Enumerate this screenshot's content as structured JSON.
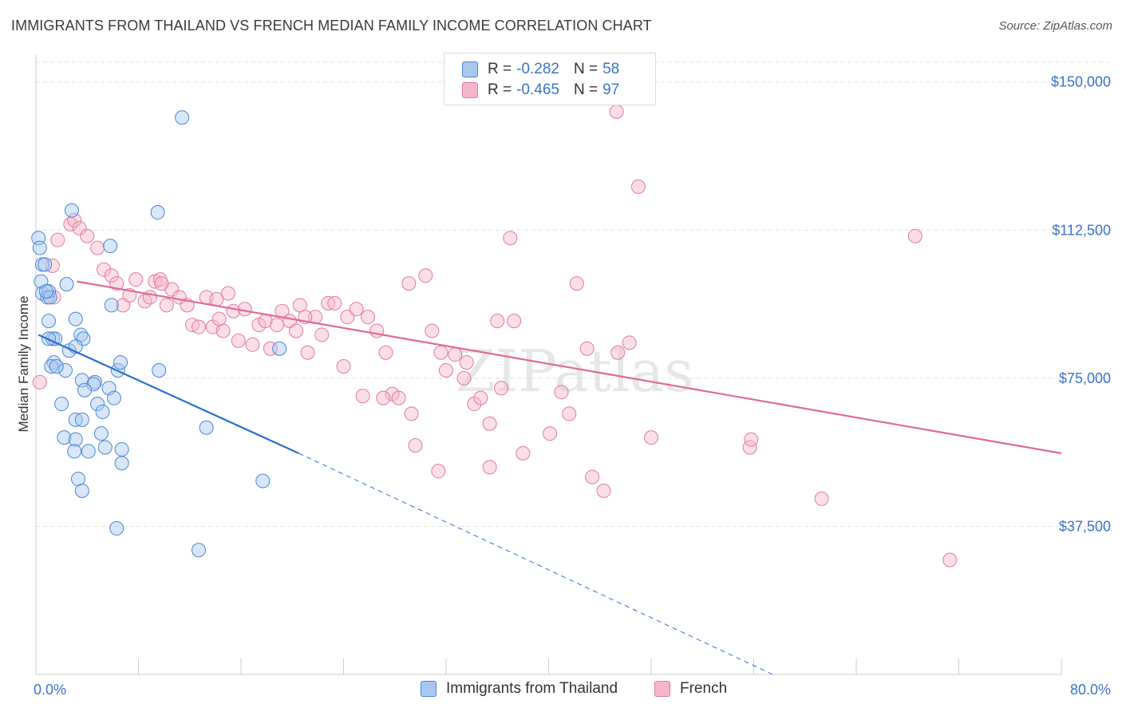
{
  "title": "IMMIGRANTS FROM THAILAND VS FRENCH MEDIAN FAMILY INCOME CORRELATION CHART",
  "source": "Source: ZipAtlas.com",
  "legend_top": [
    {
      "r_label": "R =",
      "r_value": "-0.282",
      "n_label": "N =",
      "n_value": "58"
    },
    {
      "r_label": "R =",
      "r_value": "-0.465",
      "n_label": "N =",
      "n_value": "97"
    }
  ],
  "chart_data": {
    "type": "scatter",
    "title": "IMMIGRANTS FROM THAILAND VS FRENCH MEDIAN FAMILY INCOME CORRELATION CHART",
    "xlabel": "",
    "ylabel": "Median Family Income",
    "x_tick_labels": [
      "0.0%",
      "80.0%"
    ],
    "y_tick_labels": [
      "$150,000",
      "$112,500",
      "$75,000",
      "$37,500"
    ],
    "y_ticks": [
      150000,
      112500,
      75000,
      37500
    ],
    "xlim": [
      0,
      80
    ],
    "ylim": [
      0,
      155000
    ],
    "grid": true,
    "legend_placement": "bottom",
    "watermark": "ZIPatlas",
    "colors": {
      "thailand_fill": "#a9c8ef",
      "thailand_stroke": "#4a86d4",
      "thailand_line": "#2a6fd1",
      "french_fill": "#f6b5c9",
      "french_stroke": "#e27ba0",
      "french_line": "#e0699a",
      "tick_text": "#3a74c9"
    },
    "series": [
      {
        "name": "Immigrants from Thailand",
        "trend": {
          "x0": 0.2,
          "y0": 86000,
          "x1": 20.5,
          "y1": 56000,
          "dash_x1": 57.5,
          "dash_y1": 0
        },
        "points": [
          [
            0.2,
            110500
          ],
          [
            0.3,
            108000
          ],
          [
            0.5,
            103800
          ],
          [
            0.7,
            103800
          ],
          [
            0.4,
            99500
          ],
          [
            0.5,
            96500
          ],
          [
            0.9,
            95500
          ],
          [
            1.0,
            97000
          ],
          [
            1.1,
            95500
          ],
          [
            2.4,
            98800
          ],
          [
            2.8,
            117500
          ],
          [
            11.4,
            141000
          ],
          [
            9.5,
            117000
          ],
          [
            5.8,
            108500
          ],
          [
            5.9,
            93500
          ],
          [
            3.1,
            90000
          ],
          [
            1.0,
            89500
          ],
          [
            3.5,
            86000
          ],
          [
            3.7,
            85000
          ],
          [
            1.3,
            85000
          ],
          [
            2.6,
            82000
          ],
          [
            3.1,
            83000
          ],
          [
            1.4,
            79000
          ],
          [
            1.2,
            78000
          ],
          [
            2.3,
            77000
          ],
          [
            1.6,
            78000
          ],
          [
            6.4,
            77000
          ],
          [
            6.6,
            79000
          ],
          [
            9.6,
            77000
          ],
          [
            3.6,
            74500
          ],
          [
            4.6,
            74000
          ],
          [
            4.5,
            73500
          ],
          [
            5.7,
            72500
          ],
          [
            3.8,
            72000
          ],
          [
            6.1,
            70000
          ],
          [
            2.0,
            68500
          ],
          [
            4.8,
            68500
          ],
          [
            5.2,
            66500
          ],
          [
            3.1,
            64500
          ],
          [
            3.6,
            64500
          ],
          [
            5.1,
            61000
          ],
          [
            2.2,
            60000
          ],
          [
            3.1,
            59500
          ],
          [
            5.4,
            57500
          ],
          [
            6.7,
            57000
          ],
          [
            3.0,
            56500
          ],
          [
            4.1,
            56500
          ],
          [
            6.7,
            53500
          ],
          [
            3.3,
            49500
          ],
          [
            3.6,
            46500
          ],
          [
            13.3,
            62500
          ],
          [
            17.7,
            49000
          ],
          [
            19.0,
            82500
          ],
          [
            6.3,
            37000
          ],
          [
            12.7,
            31500
          ],
          [
            1.5,
            85000
          ],
          [
            1.0,
            85000
          ],
          [
            0.8,
            97000
          ]
        ]
      },
      {
        "name": "French",
        "trend": {
          "x0": 3.2,
          "y0": 99500,
          "x1": 80.0,
          "y1": 56000
        },
        "points": [
          [
            0.3,
            74000
          ],
          [
            1.3,
            103500
          ],
          [
            1.7,
            110000
          ],
          [
            1.4,
            95500
          ],
          [
            2.7,
            114000
          ],
          [
            3.0,
            115000
          ],
          [
            3.4,
            113000
          ],
          [
            4.0,
            111000
          ],
          [
            4.8,
            108000
          ],
          [
            5.3,
            102500
          ],
          [
            5.9,
            101000
          ],
          [
            6.3,
            99000
          ],
          [
            6.8,
            93500
          ],
          [
            7.3,
            96000
          ],
          [
            7.8,
            100000
          ],
          [
            8.5,
            94500
          ],
          [
            8.9,
            95500
          ],
          [
            9.3,
            99500
          ],
          [
            9.7,
            100000
          ],
          [
            10.2,
            93500
          ],
          [
            10.6,
            97500
          ],
          [
            11.2,
            95500
          ],
          [
            11.8,
            93500
          ],
          [
            12.2,
            88500
          ],
          [
            12.7,
            88000
          ],
          [
            13.3,
            95500
          ],
          [
            13.8,
            88000
          ],
          [
            14.1,
            95000
          ],
          [
            14.6,
            87000
          ],
          [
            15.0,
            96500
          ],
          [
            15.4,
            92000
          ],
          [
            15.8,
            84500
          ],
          [
            16.3,
            92500
          ],
          [
            16.9,
            83500
          ],
          [
            17.4,
            88500
          ],
          [
            17.9,
            89500
          ],
          [
            18.3,
            82500
          ],
          [
            18.8,
            88500
          ],
          [
            19.2,
            92000
          ],
          [
            19.8,
            89500
          ],
          [
            20.3,
            87000
          ],
          [
            20.6,
            93500
          ],
          [
            21.2,
            81500
          ],
          [
            21.8,
            90500
          ],
          [
            22.3,
            86000
          ],
          [
            22.8,
            94000
          ],
          [
            23.3,
            94000
          ],
          [
            24.0,
            78000
          ],
          [
            24.3,
            90500
          ],
          [
            25.0,
            92500
          ],
          [
            25.5,
            70500
          ],
          [
            25.9,
            90500
          ],
          [
            26.6,
            87000
          ],
          [
            27.3,
            81500
          ],
          [
            27.8,
            71000
          ],
          [
            28.3,
            70000
          ],
          [
            29.1,
            99000
          ],
          [
            29.3,
            66000
          ],
          [
            29.6,
            58000
          ],
          [
            30.4,
            101000
          ],
          [
            30.9,
            87000
          ],
          [
            31.4,
            51500
          ],
          [
            32.0,
            77000
          ],
          [
            32.7,
            81000
          ],
          [
            33.4,
            75000
          ],
          [
            33.6,
            79000
          ],
          [
            34.2,
            68500
          ],
          [
            34.7,
            70000
          ],
          [
            35.4,
            52500
          ],
          [
            35.4,
            63500
          ],
          [
            36.0,
            89500
          ],
          [
            36.3,
            72500
          ],
          [
            37.0,
            110500
          ],
          [
            37.3,
            89500
          ],
          [
            38.0,
            56000
          ],
          [
            40.1,
            61000
          ],
          [
            41.0,
            71500
          ],
          [
            41.6,
            66000
          ],
          [
            42.2,
            99000
          ],
          [
            43.0,
            82500
          ],
          [
            43.4,
            50000
          ],
          [
            44.3,
            46500
          ],
          [
            45.4,
            81500
          ],
          [
            46.3,
            84000
          ],
          [
            47.0,
            123500
          ],
          [
            48.0,
            60000
          ],
          [
            55.7,
            57500
          ],
          [
            55.8,
            59500
          ],
          [
            61.3,
            44500
          ],
          [
            68.6,
            111000
          ],
          [
            71.3,
            29000
          ],
          [
            45.3,
            142500
          ],
          [
            31.6,
            81500
          ],
          [
            27.1,
            70000
          ],
          [
            21.0,
            90500
          ],
          [
            9.8,
            99000
          ],
          [
            14.3,
            90000
          ]
        ]
      }
    ]
  },
  "bottom_legend": [
    {
      "label": "Immigrants from Thailand"
    },
    {
      "label": "French"
    }
  ]
}
